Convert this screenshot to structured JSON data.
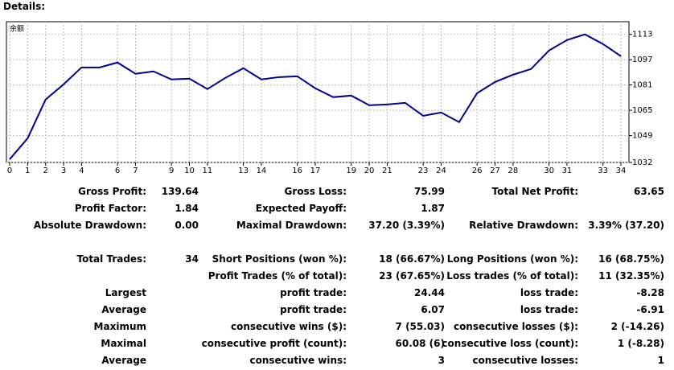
{
  "header": {
    "title": "Details:"
  },
  "chart_data": {
    "type": "line",
    "label": "余额",
    "x": [
      0,
      1,
      2,
      3,
      4,
      5,
      6,
      7,
      8,
      9,
      10,
      11,
      12,
      13,
      14,
      15,
      16,
      17,
      18,
      19,
      20,
      21,
      22,
      23,
      24,
      25,
      26,
      27,
      28,
      29,
      30,
      31,
      32,
      33,
      34
    ],
    "series": [
      {
        "color": "#00008b",
        "values": [
          1034.0,
          1047.3,
          1071.8,
          1081.4,
          1092.1,
          1092.1,
          1095.2,
          1088.1,
          1089.6,
          1084.5,
          1085.0,
          1078.4,
          1085.5,
          1091.6,
          1084.5,
          1086.0,
          1086.5,
          1078.9,
          1073.3,
          1074.3,
          1068.2,
          1068.7,
          1069.7,
          1061.5,
          1063.6,
          1057.5,
          1075.8,
          1082.9,
          1087.5,
          1091.1,
          1102.8,
          1109.4,
          1113.0,
          1106.9,
          1099.2
        ]
      }
    ],
    "xlim": [
      0,
      34
    ],
    "xticks": [
      0,
      1,
      2,
      3,
      4,
      6,
      7,
      9,
      10,
      11,
      13,
      14,
      16,
      17,
      19,
      20,
      21,
      23,
      24,
      26,
      27,
      28,
      30,
      31,
      33,
      34
    ],
    "ylim": [
      1032,
      1121
    ],
    "yticks": [
      1032,
      1049,
      1065,
      1081,
      1097,
      1113
    ],
    "grid": true
  },
  "table": {
    "rows": [
      [
        "Gross Profit:",
        "139.64",
        "Gross Loss:",
        "75.99",
        "Total Net Profit:",
        "63.65"
      ],
      [
        "Profit Factor:",
        "1.84",
        "Expected Payoff:",
        "1.87",
        null,
        null
      ],
      [
        "Absolute Drawdown:",
        "0.00",
        "Maximal Drawdown:",
        "37.20 (3.39%)",
        "Relative Drawdown:",
        "3.39% (37.20)"
      ],
      [
        "Total Trades:",
        "34",
        "Short Positions (won %):",
        "18 (66.67%)",
        "Long Positions (won %):",
        "16 (68.75%)"
      ],
      [
        null,
        null,
        "Profit Trades (% of total):",
        "23 (67.65%)",
        "Loss trades (% of total):",
        "11 (32.35%)"
      ],
      [
        "Largest",
        null,
        "profit trade:",
        "24.44",
        "loss trade:",
        "-8.28"
      ],
      [
        "Average",
        null,
        "profit trade:",
        "6.07",
        "loss trade:",
        "-6.91"
      ],
      [
        "Maximum",
        null,
        "consecutive wins ($):",
        "7 (55.03)",
        "consecutive losses ($):",
        "2 (-14.26)"
      ],
      [
        "Maximal",
        null,
        "consecutive profit (count):",
        "60.08 (6)",
        "consecutive loss (count):",
        "1 (-8.28)"
      ],
      [
        "Average",
        null,
        "consecutive wins:",
        "3",
        "consecutive losses:",
        "1"
      ]
    ]
  }
}
